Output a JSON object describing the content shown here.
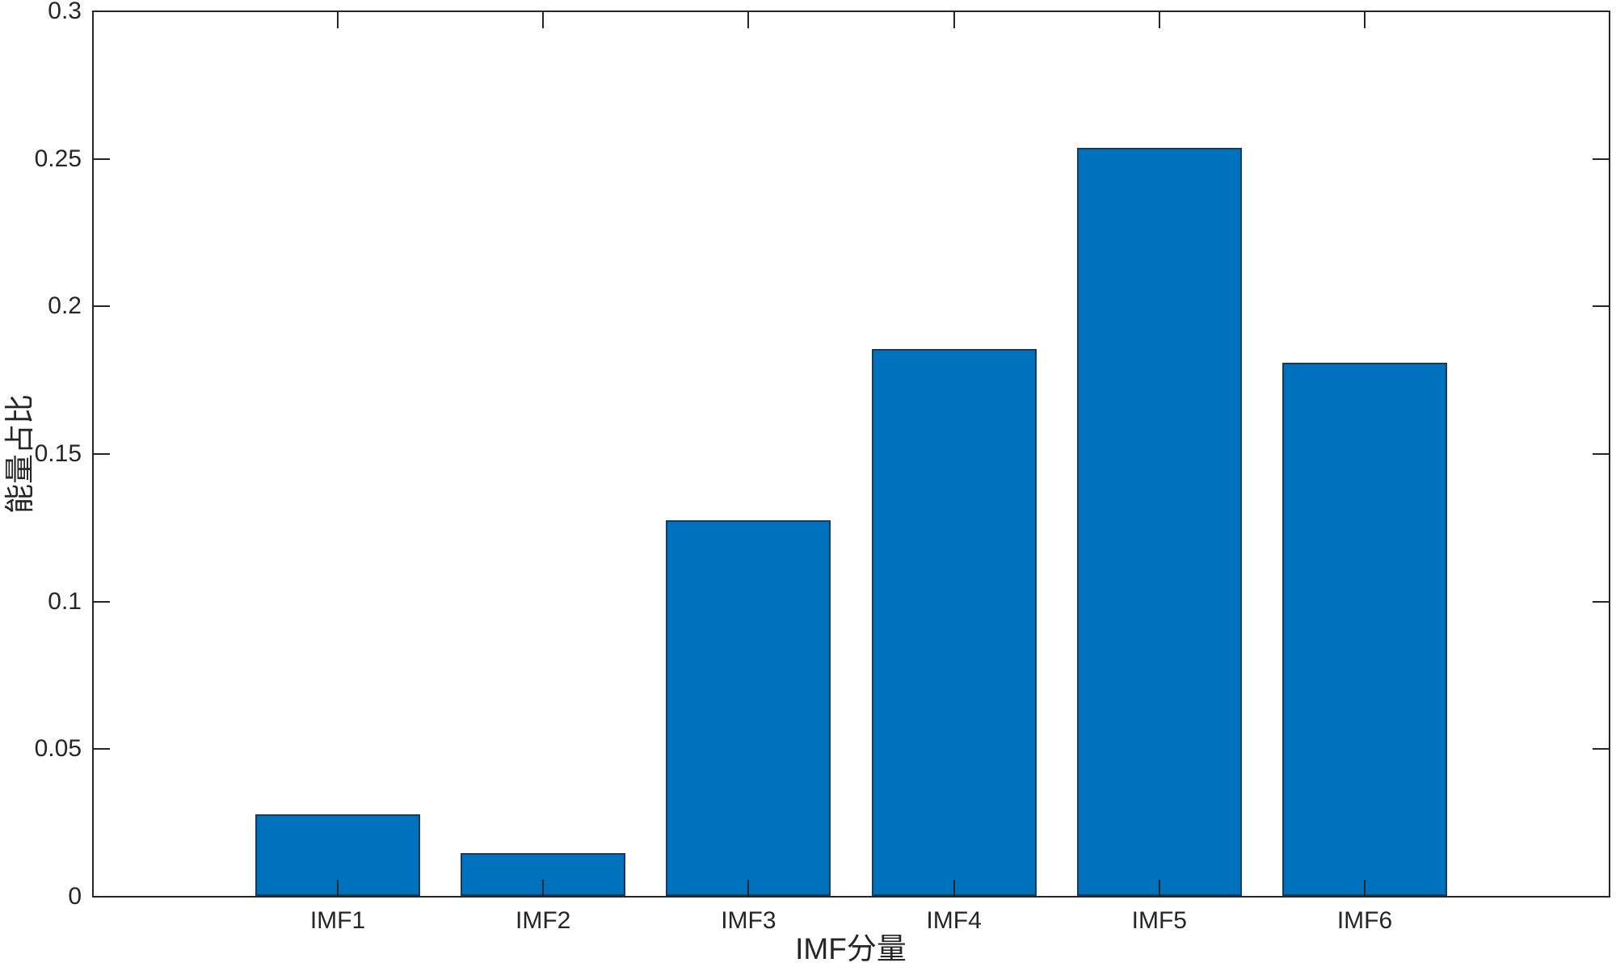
{
  "chart_data": {
    "type": "bar",
    "categories": [
      "IMF1",
      "IMF2",
      "IMF3",
      "IMF4",
      "IMF5",
      "IMF6"
    ],
    "values": [
      0.0277,
      0.0145,
      0.1273,
      0.1853,
      0.2535,
      0.1806
    ],
    "title": "",
    "xlabel": "IMF分量",
    "ylabel": "能量占比",
    "ylim": [
      0,
      0.3
    ],
    "yticks": [
      0,
      0.05,
      0.1,
      0.15,
      0.2,
      0.25,
      0.3
    ],
    "ytick_labels": [
      "0",
      "0.05",
      "0.1",
      "0.15",
      "0.2",
      "0.25",
      "0.3"
    ],
    "grid": false,
    "legend": null,
    "bar_fill_color": "#0072BD",
    "bar_edge_color": "#1A3A5C",
    "axis_color": "#262626",
    "background_color": "#ffffff",
    "box": "on",
    "tick_direction": "in"
  }
}
